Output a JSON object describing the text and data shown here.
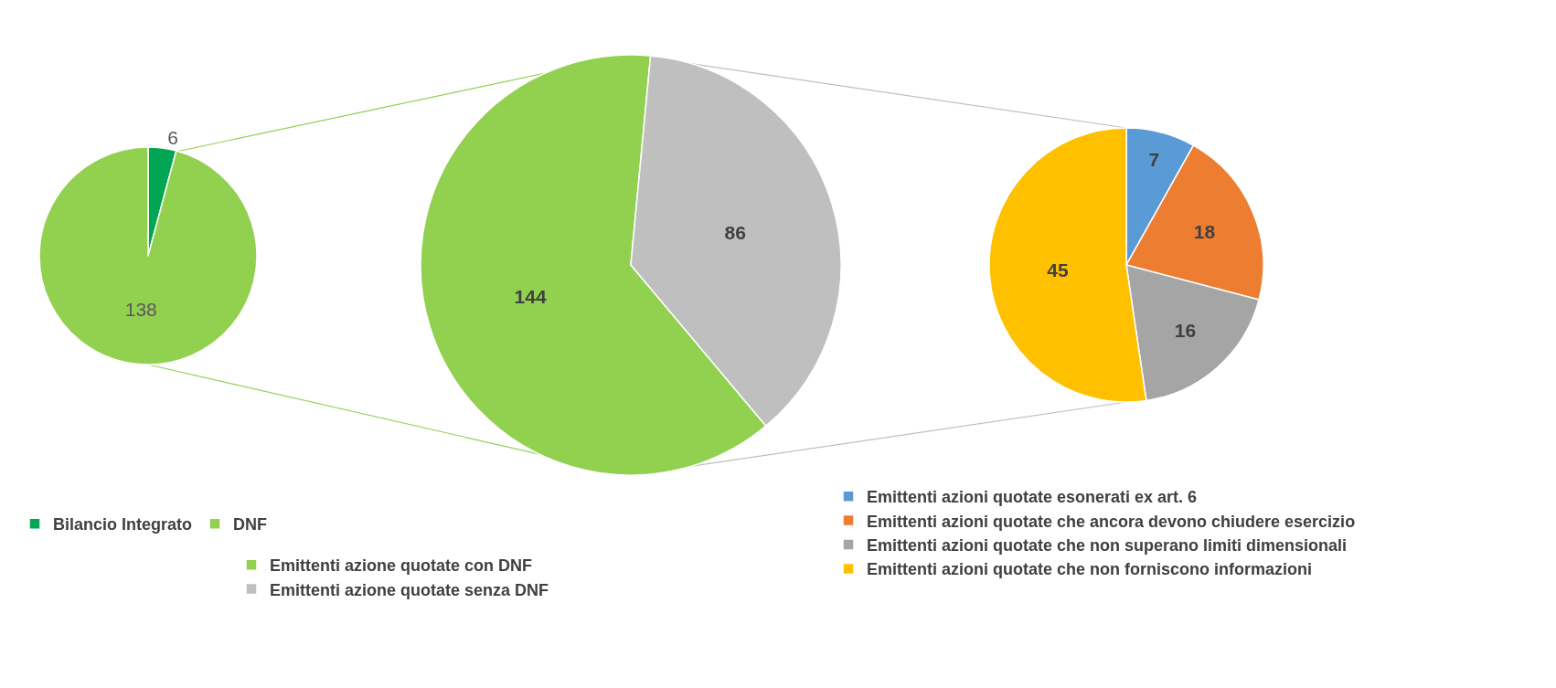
{
  "chart_data": [
    {
      "type": "pie",
      "categories": [
        "Bilancio Integrato",
        "DNF"
      ],
      "values": [
        6,
        138
      ],
      "colors": [
        "#00a651",
        "#92d050"
      ],
      "data_labels": true,
      "legend": "bottom"
    },
    {
      "type": "pie",
      "categories": [
        "Emittenti azione quotate con DNF",
        "Emittenti azione quotate senza DNF"
      ],
      "values": [
        144,
        86
      ],
      "colors": [
        "#92d050",
        "#bfbfbf"
      ],
      "data_labels": true,
      "legend": "bottom"
    },
    {
      "type": "pie",
      "categories": [
        "Emittenti azioni quotate esonerati ex art. 6",
        "Emittenti azioni quotate che ancora devono chiudere esercizio",
        "Emittenti azioni quotate che non superano limiti dimensionali",
        "Emittenti azioni quotate che non forniscono informazioni"
      ],
      "values": [
        7,
        18,
        16,
        45
      ],
      "colors": [
        "#5b9bd5",
        "#ed7d31",
        "#a5a5a5",
        "#ffc000"
      ],
      "data_labels": true,
      "legend": "bottom"
    }
  ]
}
